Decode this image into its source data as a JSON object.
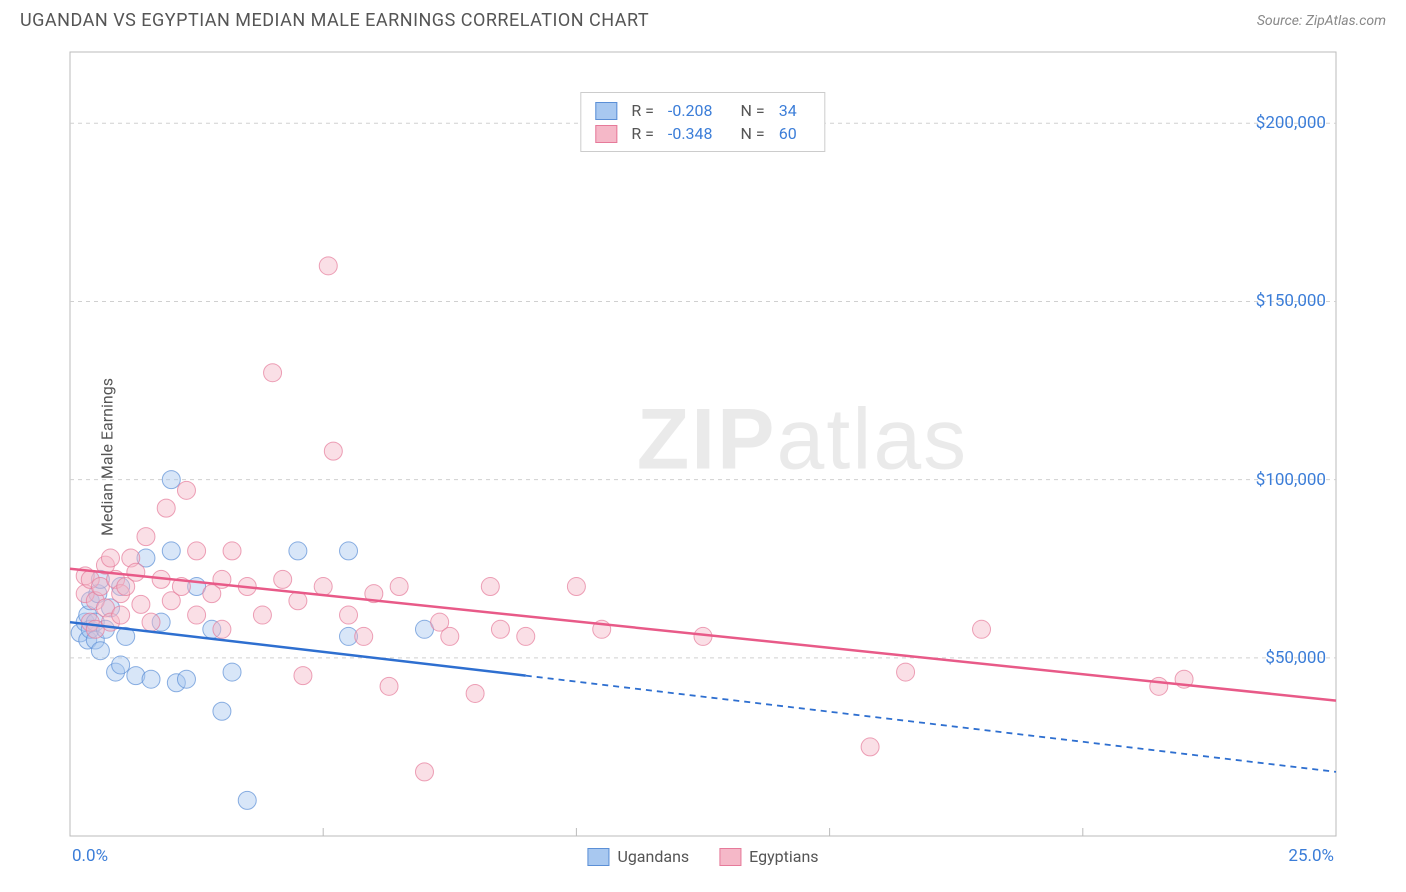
{
  "header": {
    "title": "UGANDAN VS EGYPTIAN MEDIAN MALE EARNINGS CORRELATION CHART",
    "source_prefix": "Source: ",
    "source_name": "ZipAtlas.com"
  },
  "watermark": {
    "zip": "ZIP",
    "atlas": "atlas"
  },
  "chart": {
    "type": "scatter",
    "y_label": "Median Male Earnings",
    "xlim": [
      0,
      25
    ],
    "ylim": [
      0,
      220000
    ],
    "x_tick_min": "0.0%",
    "x_tick_max": "25.0%",
    "y_grid_vals": [
      50000,
      100000,
      150000,
      200000
    ],
    "y_grid_labels": [
      "$50,000",
      "$100,000",
      "$150,000",
      "$200,000"
    ],
    "x_grid_vals": [
      5,
      10,
      15,
      20,
      25
    ],
    "background_color": "#ffffff",
    "grid_color": "#d0d0d0",
    "axis_color": "#bbbbbb",
    "marker_radius": 9,
    "marker_opacity": 0.45,
    "series": [
      {
        "name": "Ugandans",
        "color_fill": "#a8c8f0",
        "color_stroke": "#5b8fd6",
        "line_color": "#2e6fd0",
        "r_value": "-0.208",
        "n_value": "34",
        "points": [
          [
            0.2,
            57000
          ],
          [
            0.3,
            60000
          ],
          [
            0.35,
            55000
          ],
          [
            0.35,
            62000
          ],
          [
            0.4,
            58000
          ],
          [
            0.4,
            66000
          ],
          [
            0.5,
            60000
          ],
          [
            0.5,
            55000
          ],
          [
            0.55,
            68000
          ],
          [
            0.6,
            52000
          ],
          [
            0.6,
            72000
          ],
          [
            0.7,
            58000
          ],
          [
            0.8,
            64000
          ],
          [
            0.9,
            46000
          ],
          [
            1.0,
            48000
          ],
          [
            1.0,
            70000
          ],
          [
            1.1,
            56000
          ],
          [
            1.3,
            45000
          ],
          [
            1.5,
            78000
          ],
          [
            1.6,
            44000
          ],
          [
            1.8,
            60000
          ],
          [
            2.0,
            80000
          ],
          [
            2.0,
            100000
          ],
          [
            2.1,
            43000
          ],
          [
            2.3,
            44000
          ],
          [
            2.5,
            70000
          ],
          [
            2.8,
            58000
          ],
          [
            3.0,
            35000
          ],
          [
            3.2,
            46000
          ],
          [
            3.5,
            10000
          ],
          [
            4.5,
            80000
          ],
          [
            5.5,
            56000
          ],
          [
            5.5,
            80000
          ],
          [
            7.0,
            58000
          ]
        ],
        "trend": {
          "x1": 0,
          "y1": 60000,
          "x2": 9,
          "y2": 45000,
          "ext_x2": 25,
          "ext_y2": 18000
        }
      },
      {
        "name": "Egyptians",
        "color_fill": "#f5b8c8",
        "color_stroke": "#e67a9a",
        "line_color": "#e85a88",
        "r_value": "-0.348",
        "n_value": "60",
        "points": [
          [
            0.3,
            68000
          ],
          [
            0.3,
            73000
          ],
          [
            0.4,
            60000
          ],
          [
            0.4,
            72000
          ],
          [
            0.5,
            66000
          ],
          [
            0.5,
            58000
          ],
          [
            0.6,
            70000
          ],
          [
            0.7,
            64000
          ],
          [
            0.7,
            76000
          ],
          [
            0.8,
            60000
          ],
          [
            0.8,
            78000
          ],
          [
            0.9,
            72000
          ],
          [
            1.0,
            62000
          ],
          [
            1.0,
            68000
          ],
          [
            1.1,
            70000
          ],
          [
            1.2,
            78000
          ],
          [
            1.3,
            74000
          ],
          [
            1.4,
            65000
          ],
          [
            1.5,
            84000
          ],
          [
            1.6,
            60000
          ],
          [
            1.8,
            72000
          ],
          [
            1.9,
            92000
          ],
          [
            2.0,
            66000
          ],
          [
            2.2,
            70000
          ],
          [
            2.3,
            97000
          ],
          [
            2.5,
            62000
          ],
          [
            2.5,
            80000
          ],
          [
            2.8,
            68000
          ],
          [
            3.0,
            72000
          ],
          [
            3.0,
            58000
          ],
          [
            3.2,
            80000
          ],
          [
            3.5,
            70000
          ],
          [
            3.8,
            62000
          ],
          [
            4.0,
            130000
          ],
          [
            4.2,
            72000
          ],
          [
            4.5,
            66000
          ],
          [
            4.6,
            45000
          ],
          [
            5.0,
            70000
          ],
          [
            5.1,
            160000
          ],
          [
            5.2,
            108000
          ],
          [
            5.5,
            62000
          ],
          [
            5.8,
            56000
          ],
          [
            6.0,
            68000
          ],
          [
            6.3,
            42000
          ],
          [
            6.5,
            70000
          ],
          [
            7.0,
            18000
          ],
          [
            7.3,
            60000
          ],
          [
            7.5,
            56000
          ],
          [
            8.0,
            40000
          ],
          [
            8.3,
            70000
          ],
          [
            8.5,
            58000
          ],
          [
            9.0,
            56000
          ],
          [
            10.0,
            70000
          ],
          [
            10.5,
            58000
          ],
          [
            12.5,
            56000
          ],
          [
            15.8,
            25000
          ],
          [
            16.5,
            46000
          ],
          [
            18.0,
            58000
          ],
          [
            21.5,
            42000
          ],
          [
            22.0,
            44000
          ]
        ],
        "trend": {
          "x1": 0,
          "y1": 75000,
          "x2": 25,
          "y2": 38000
        }
      }
    ],
    "legend_bottom": [
      {
        "label": "Ugandans",
        "fill": "#a8c8f0",
        "stroke": "#5b8fd6"
      },
      {
        "label": "Egyptians",
        "fill": "#f5b8c8",
        "stroke": "#e67a9a"
      }
    ]
  }
}
